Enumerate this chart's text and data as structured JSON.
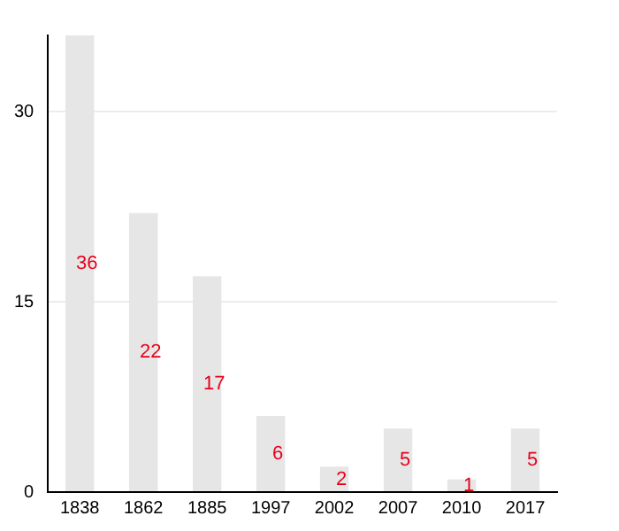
{
  "chart_data": {
    "type": "bar",
    "categories": [
      "1838",
      "1862",
      "1885",
      "1997",
      "2002",
      "2007",
      "2010",
      "2017"
    ],
    "values": [
      36,
      22,
      17,
      6,
      2,
      5,
      1,
      5
    ],
    "color": "#e6e6e6",
    "ylim": [
      0,
      36
    ],
    "yticks": [
      0,
      15,
      30
    ],
    "grid": "y",
    "data_labels": true,
    "legend": false
  }
}
